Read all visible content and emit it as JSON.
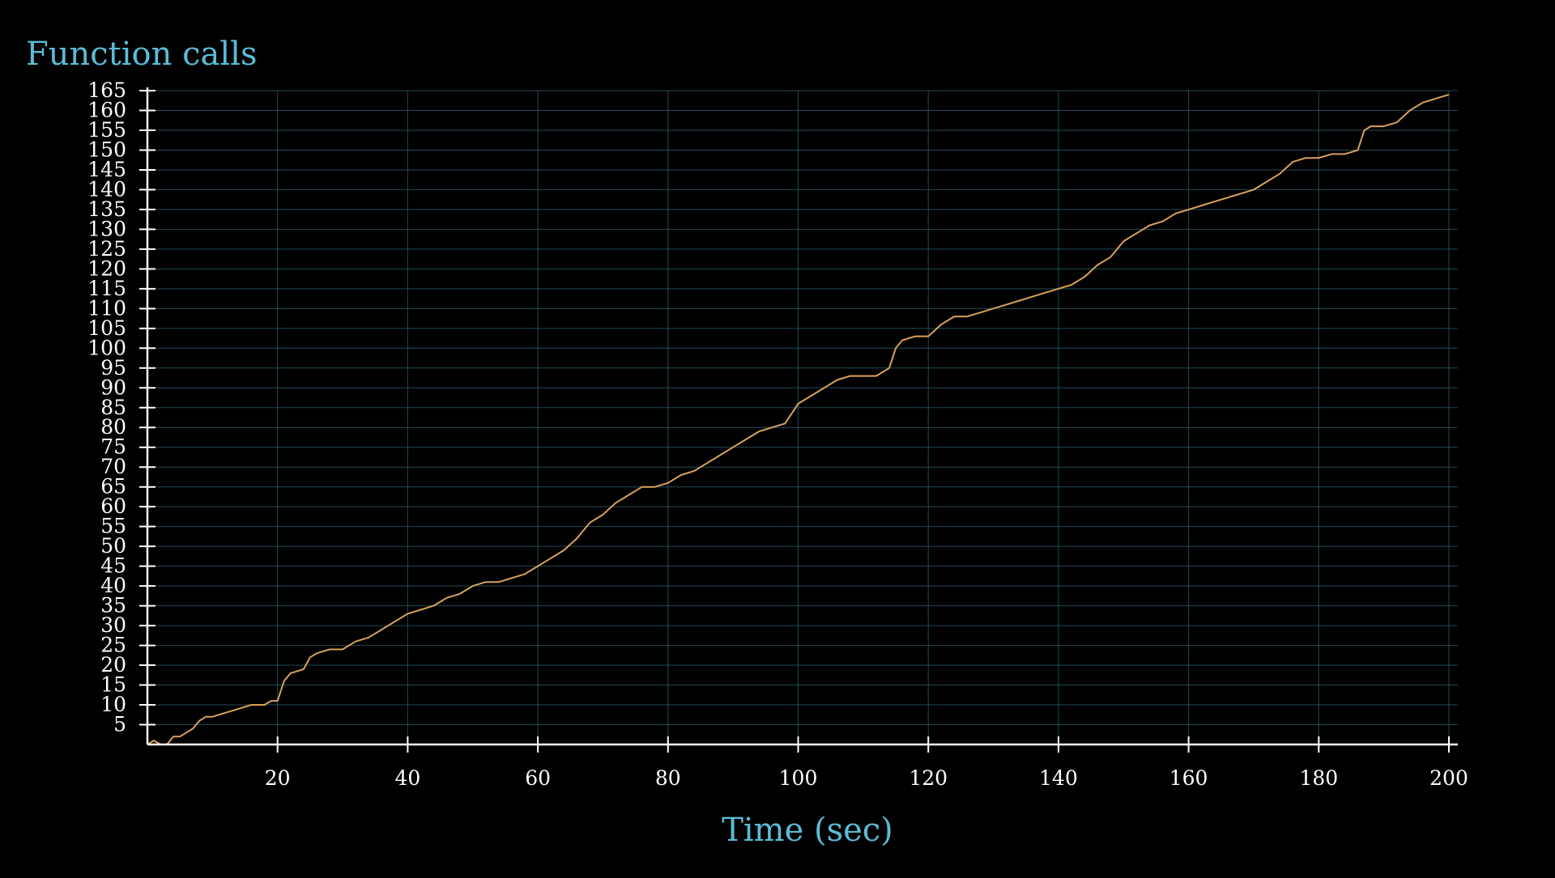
{
  "chart_data": {
    "type": "line",
    "title": "Function calls",
    "xlabel": "Time (sec)",
    "ylabel": "",
    "xlim": [
      0,
      200
    ],
    "ylim": [
      0,
      165
    ],
    "x_ticks": [
      20,
      40,
      60,
      80,
      100,
      120,
      140,
      160,
      180,
      200
    ],
    "y_ticks": [
      5,
      10,
      15,
      20,
      25,
      30,
      35,
      40,
      45,
      50,
      55,
      60,
      65,
      70,
      75,
      80,
      85,
      90,
      95,
      100,
      105,
      110,
      115,
      120,
      125,
      130,
      135,
      140,
      145,
      150,
      155,
      160,
      165
    ],
    "grid": true,
    "legend": "none",
    "colors": {
      "background": "#000000",
      "title": "#5bbcd6",
      "grid": "#2f6a7a",
      "axis": "#ffffff",
      "tick_label": "#ffffff",
      "series": "#d9a15c"
    },
    "series": [
      {
        "x": [
          0,
          1,
          2,
          3,
          4,
          5,
          6,
          7,
          8,
          9,
          10,
          12,
          14,
          16,
          18,
          19,
          20,
          21,
          22,
          24,
          25,
          26,
          28,
          30,
          32,
          34,
          36,
          38,
          40,
          42,
          44,
          46,
          48,
          50,
          52,
          54,
          56,
          58,
          60,
          62,
          64,
          66,
          68,
          70,
          72,
          74,
          76,
          78,
          80,
          82,
          84,
          86,
          88,
          90,
          92,
          94,
          96,
          98,
          100,
          102,
          104,
          106,
          108,
          110,
          112,
          114,
          115,
          116,
          118,
          120,
          122,
          124,
          126,
          128,
          130,
          132,
          134,
          136,
          138,
          140,
          142,
          144,
          146,
          148,
          150,
          152,
          154,
          156,
          158,
          160,
          162,
          164,
          166,
          168,
          170,
          172,
          174,
          176,
          178,
          180,
          182,
          184,
          186,
          187,
          188,
          190,
          192,
          194,
          196,
          198,
          200
        ],
        "y": [
          0,
          1,
          0,
          0,
          2,
          2,
          3,
          4,
          6,
          7,
          7,
          8,
          9,
          10,
          10,
          11,
          11,
          16,
          18,
          19,
          22,
          23,
          24,
          24,
          26,
          27,
          29,
          31,
          33,
          34,
          35,
          37,
          38,
          40,
          41,
          41,
          42,
          43,
          45,
          47,
          49,
          52,
          56,
          58,
          61,
          63,
          65,
          65,
          66,
          68,
          69,
          71,
          73,
          75,
          77,
          79,
          80,
          81,
          86,
          88,
          90,
          92,
          93,
          93,
          93,
          95,
          100,
          102,
          103,
          103,
          106,
          108,
          108,
          109,
          110,
          111,
          112,
          113,
          114,
          115,
          116,
          118,
          121,
          123,
          127,
          129,
          131,
          132,
          134,
          135,
          136,
          137,
          138,
          139,
          140,
          142,
          144,
          147,
          148,
          148,
          149,
          149,
          150,
          155,
          156,
          156,
          157,
          160,
          162,
          163,
          164
        ]
      }
    ]
  }
}
